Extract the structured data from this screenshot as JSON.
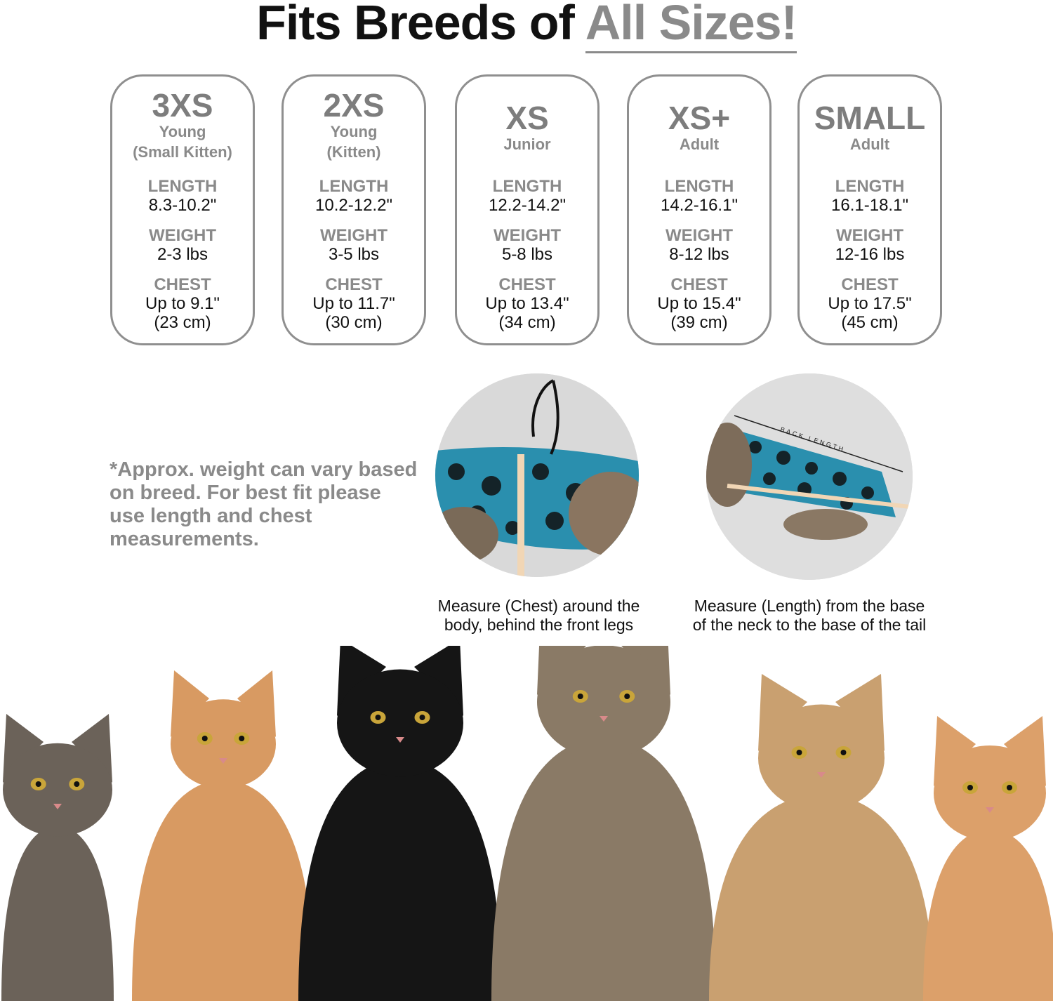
{
  "title": {
    "prefix": "Fits Breeds of ",
    "accent": "All Sizes!"
  },
  "colors": {
    "accent_gray": "#8a8a8a",
    "text": "#111111",
    "fabric": "#2a8fae"
  },
  "sizes": [
    {
      "size": "3XS",
      "line1": "Young",
      "line2": "(Small Kitten)",
      "length_label": "LENGTH",
      "length": "8.3-10.2\"",
      "weight_label": "WEIGHT",
      "weight": "2-3 lbs",
      "chest_label": "CHEST",
      "chest": "Up to 9.1\"",
      "chest_cm": "(23 cm)"
    },
    {
      "size": "2XS",
      "line1": "Young",
      "line2": "(Kitten)",
      "length_label": "LENGTH",
      "length": "10.2-12.2\"",
      "weight_label": "WEIGHT",
      "weight": "3-5 lbs",
      "chest_label": "CHEST",
      "chest": "Up to 11.7\"",
      "chest_cm": "(30 cm)"
    },
    {
      "size": "XS",
      "line1": "Junior",
      "line2": "",
      "length_label": "LENGTH",
      "length": "12.2-14.2\"",
      "weight_label": "WEIGHT",
      "weight": "5-8 lbs",
      "chest_label": "CHEST",
      "chest": "Up to 13.4\"",
      "chest_cm": "(34 cm)"
    },
    {
      "size": "XS+",
      "line1": "Adult",
      "line2": "",
      "length_label": "LENGTH",
      "length": "14.2-16.1\"",
      "weight_label": "WEIGHT",
      "weight": "8-12 lbs",
      "chest_label": "CHEST",
      "chest": "Up to 15.4\"",
      "chest_cm": "(39 cm)"
    },
    {
      "size": "SMALL",
      "line1": "Adult",
      "line2": "",
      "length_label": "LENGTH",
      "length": "16.1-18.1\"",
      "weight_label": "WEIGHT",
      "weight": "12-16 lbs",
      "chest_label": "CHEST",
      "chest": "Up to 17.5\"",
      "chest_cm": "(45 cm)"
    }
  ],
  "note": "*Approx. weight can vary based on breed. For best fit please use length and chest measurements.",
  "photos": {
    "length_label": "BACK LENGTH"
  },
  "captions": {
    "chest": [
      "Measure (Chest) around the",
      "body, behind the front legs"
    ],
    "length": [
      "Measure (Length) from the base",
      "of the neck to the base of the tail"
    ]
  },
  "cats": [
    {
      "coat": "tabby-white",
      "color": "#6b6259"
    },
    {
      "coat": "orange",
      "color": "#d89a62"
    },
    {
      "coat": "black",
      "color": "#151515"
    },
    {
      "coat": "brown-tabby",
      "color": "#8a7a66"
    },
    {
      "coat": "calico",
      "color": "#c9a070"
    },
    {
      "coat": "orange",
      "color": "#dca06a"
    }
  ]
}
